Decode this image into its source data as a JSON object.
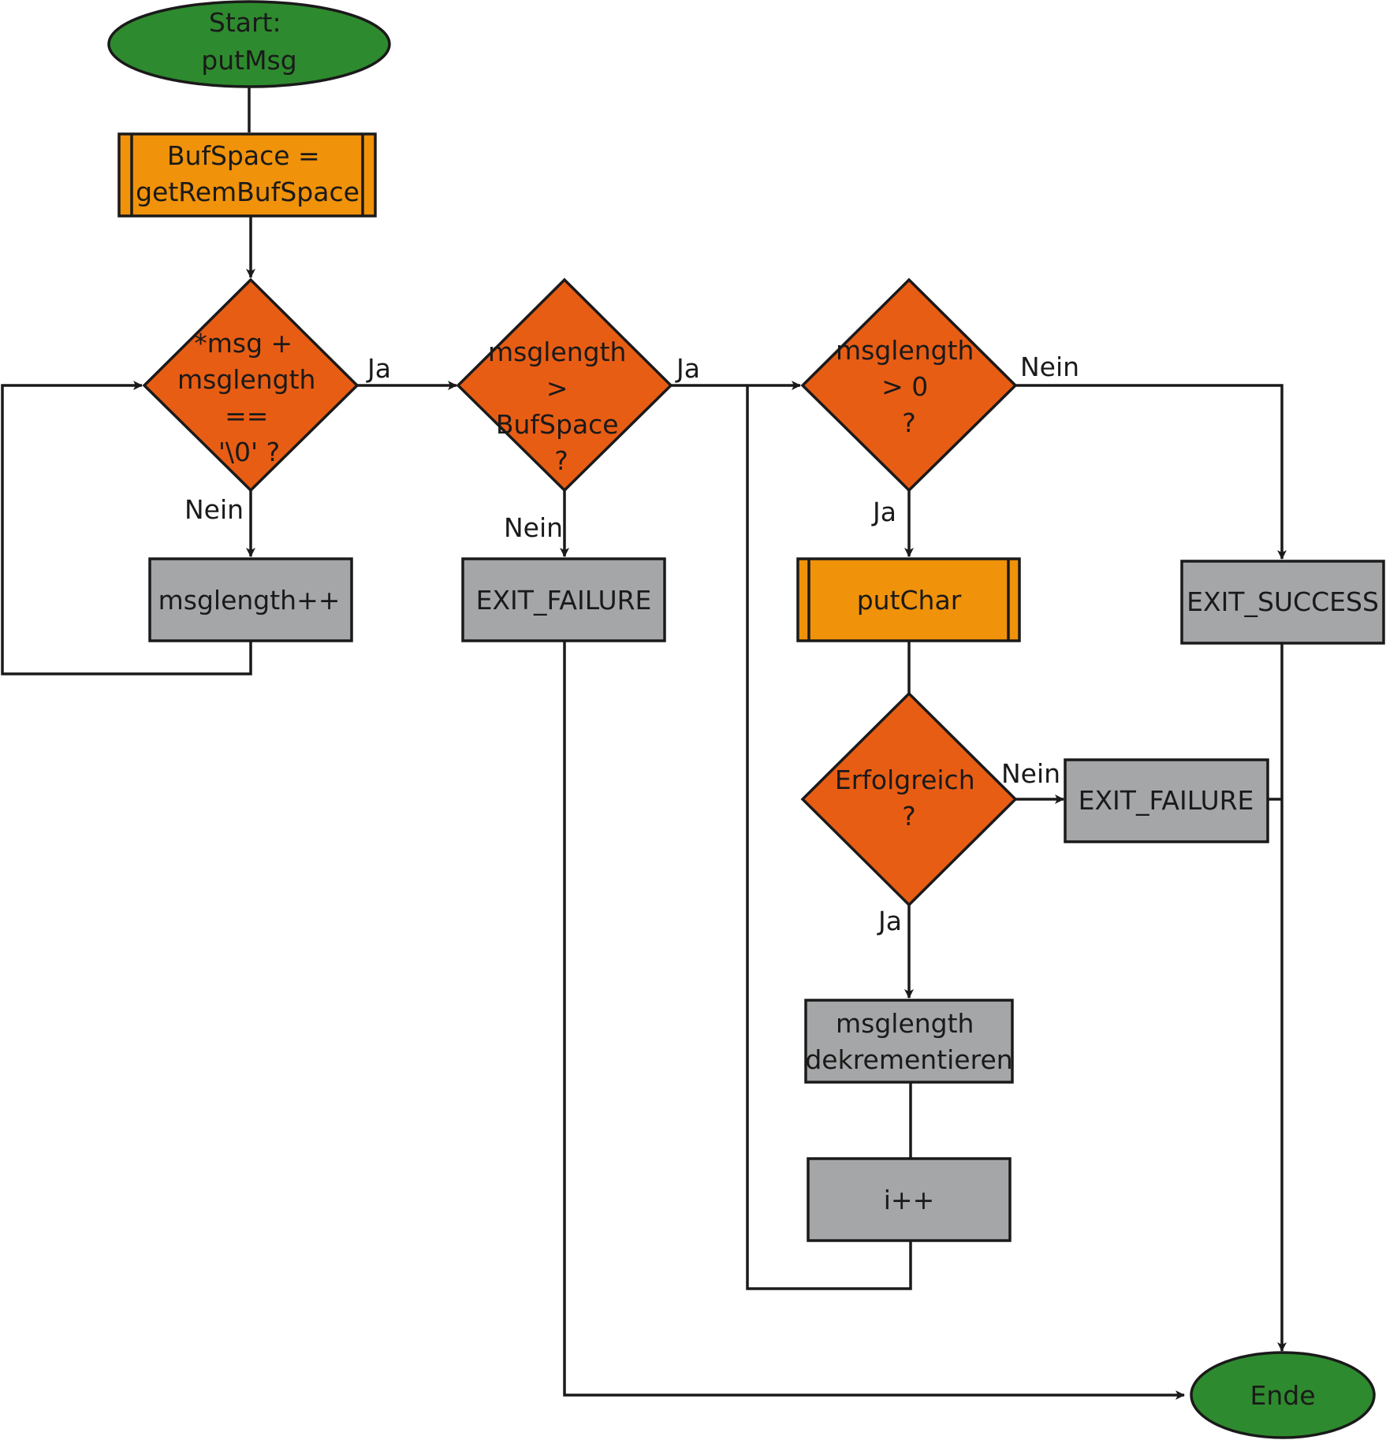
{
  "colors": {
    "terminal": "#2e8a2e",
    "subprocess": "#f0920a",
    "decision": "#e85d14",
    "process": "#a5a6a8",
    "line": "#1a1a1a"
  },
  "nodes": {
    "start": {
      "lines": [
        "Start:",
        "putMsg"
      ]
    },
    "bufspace": {
      "lines": [
        "BufSpace =",
        "getRemBufSpace"
      ]
    },
    "check_end": {
      "lines": [
        "*msg +",
        "msglength",
        "==",
        "'\\0' ?"
      ]
    },
    "len_inc": {
      "lines": [
        "msglength++"
      ]
    },
    "check_space": {
      "lines": [
        "msglength",
        ">",
        "BufSpace",
        "?"
      ]
    },
    "fail_1": {
      "lines": [
        "EXIT_FAILURE"
      ]
    },
    "check_len": {
      "lines": [
        "msglength",
        "> 0",
        "?"
      ]
    },
    "success": {
      "lines": [
        "EXIT_SUCCESS"
      ]
    },
    "putchar": {
      "lines": [
        "putChar"
      ]
    },
    "check_ok": {
      "lines": [
        "Erfolgreich",
        "?"
      ]
    },
    "fail_2": {
      "lines": [
        "EXIT_FAILURE"
      ]
    },
    "len_dec": {
      "lines": [
        "msglength",
        "dekrementieren"
      ]
    },
    "i_inc": {
      "lines": [
        "i++"
      ]
    },
    "end": {
      "lines": [
        "Ende"
      ]
    }
  },
  "edge_labels": {
    "check_end_yes": "Ja",
    "check_end_no": "Nein",
    "check_space_yes": "Ja",
    "check_space_no": "Nein",
    "check_len_no": "Nein",
    "check_len_yes": "Ja",
    "check_ok_no": "Nein",
    "check_ok_yes": "Ja"
  }
}
